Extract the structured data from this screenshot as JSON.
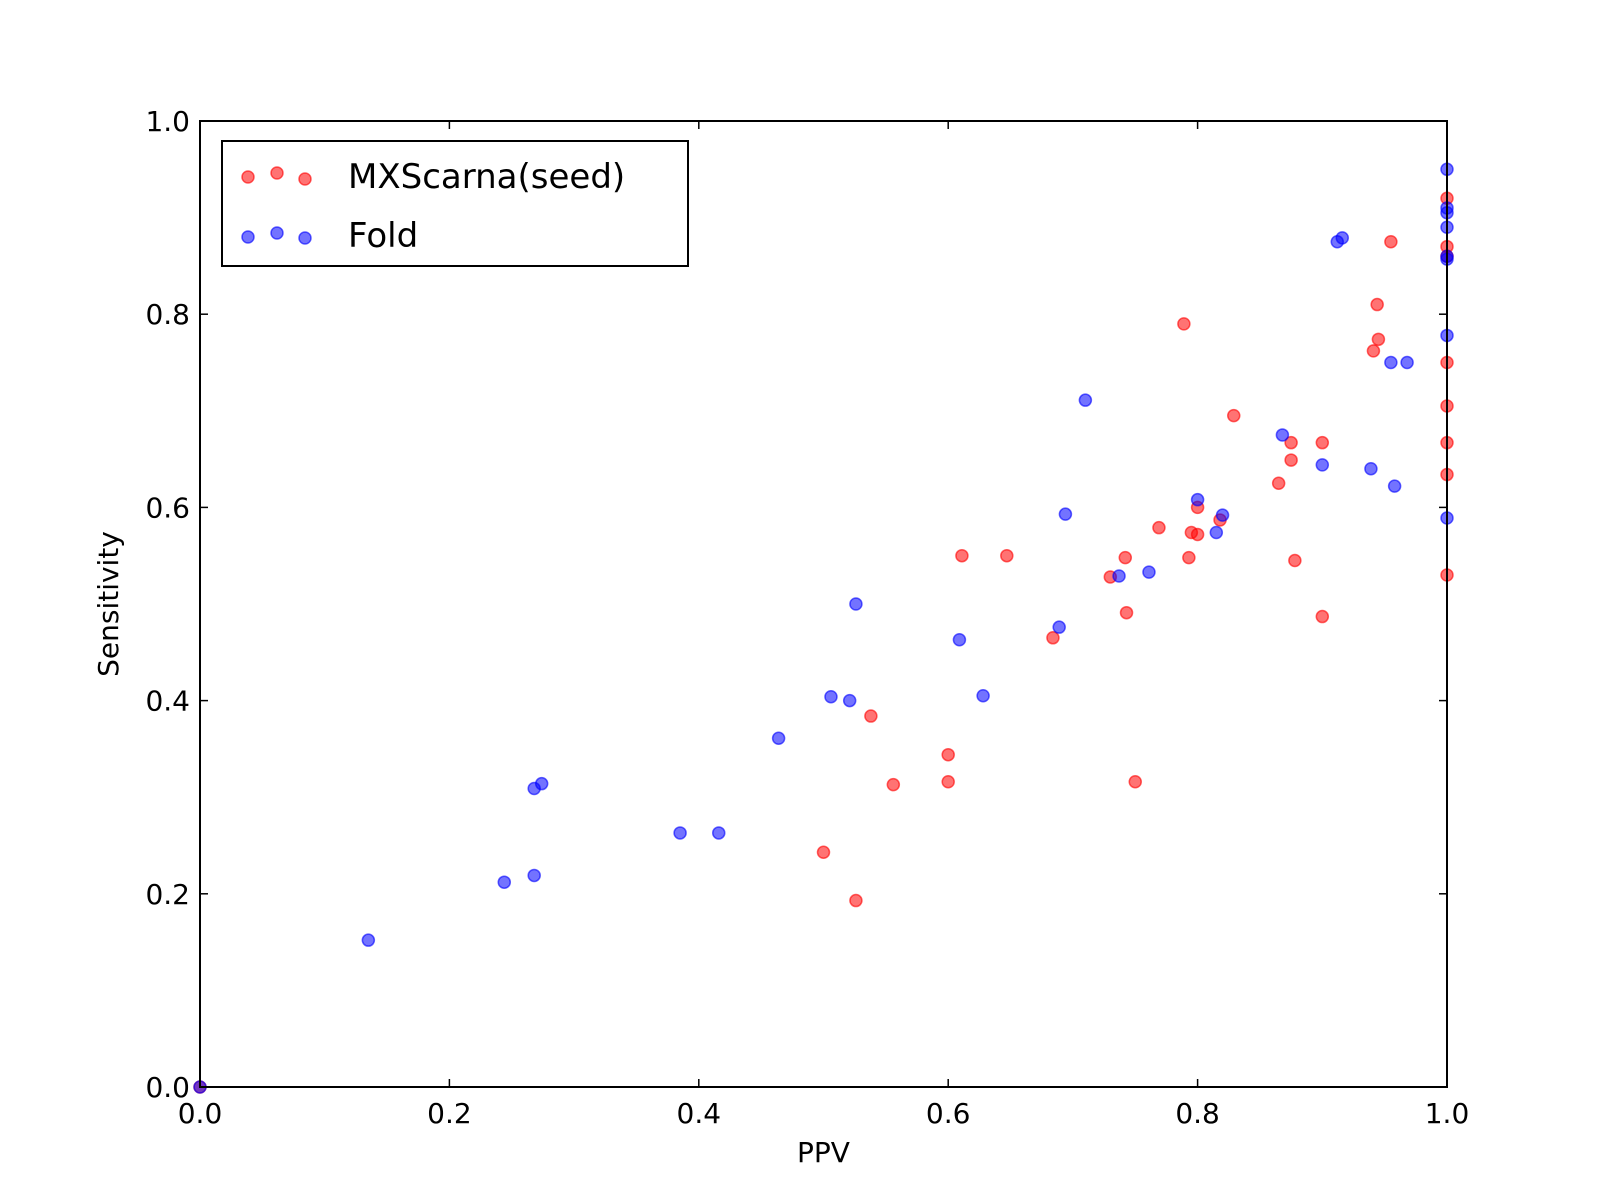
{
  "chart_data": {
    "type": "scatter",
    "xlabel": "PPV",
    "ylabel": "Sensitivity",
    "xlim": [
      0,
      1
    ],
    "ylim": [
      0,
      1
    ],
    "xticks": [
      "0.0",
      "0.2",
      "0.4",
      "0.6",
      "0.8",
      "1.0"
    ],
    "yticks": [
      "0.0",
      "0.2",
      "0.4",
      "0.6",
      "0.8",
      "1.0"
    ],
    "grid": false,
    "legend_position": "top-left",
    "series": [
      {
        "name": "MXScarna(seed)",
        "color": "#ff0000",
        "points": [
          [
            0.0,
            0.0
          ],
          [
            0.5,
            0.243
          ],
          [
            0.526,
            0.193
          ],
          [
            0.538,
            0.384
          ],
          [
            0.556,
            0.313
          ],
          [
            0.6,
            0.344
          ],
          [
            0.6,
            0.316
          ],
          [
            0.611,
            0.55
          ],
          [
            0.647,
            0.55
          ],
          [
            0.684,
            0.465
          ],
          [
            0.73,
            0.528
          ],
          [
            0.742,
            0.548
          ],
          [
            0.743,
            0.491
          ],
          [
            0.75,
            0.316
          ],
          [
            0.769,
            0.579
          ],
          [
            0.789,
            0.79
          ],
          [
            0.793,
            0.548
          ],
          [
            0.795,
            0.574
          ],
          [
            0.8,
            0.6
          ],
          [
            0.8,
            0.572
          ],
          [
            0.818,
            0.587
          ],
          [
            0.829,
            0.695
          ],
          [
            0.865,
            0.625
          ],
          [
            0.875,
            0.667
          ],
          [
            0.875,
            0.649
          ],
          [
            0.878,
            0.545
          ],
          [
            0.9,
            0.667
          ],
          [
            0.9,
            0.487
          ],
          [
            0.941,
            0.762
          ],
          [
            0.944,
            0.81
          ],
          [
            0.945,
            0.774
          ],
          [
            0.955,
            0.875
          ],
          [
            1.0,
            0.92
          ],
          [
            1.0,
            0.87
          ],
          [
            1.0,
            0.86
          ],
          [
            1.0,
            0.75
          ],
          [
            1.0,
            0.705
          ],
          [
            1.0,
            0.667
          ],
          [
            1.0,
            0.634
          ],
          [
            1.0,
            0.53
          ]
        ]
      },
      {
        "name": "Fold",
        "color": "#0000ff",
        "points": [
          [
            0.0,
            0.0
          ],
          [
            0.135,
            0.152
          ],
          [
            0.244,
            0.212
          ],
          [
            0.268,
            0.309
          ],
          [
            0.268,
            0.219
          ],
          [
            0.274,
            0.314
          ],
          [
            0.385,
            0.263
          ],
          [
            0.416,
            0.263
          ],
          [
            0.464,
            0.361
          ],
          [
            0.506,
            0.404
          ],
          [
            0.521,
            0.4
          ],
          [
            0.526,
            0.5
          ],
          [
            0.609,
            0.463
          ],
          [
            0.628,
            0.405
          ],
          [
            0.689,
            0.476
          ],
          [
            0.694,
            0.593
          ],
          [
            0.71,
            0.711
          ],
          [
            0.737,
            0.529
          ],
          [
            0.761,
            0.533
          ],
          [
            0.8,
            0.608
          ],
          [
            0.815,
            0.574
          ],
          [
            0.82,
            0.592
          ],
          [
            0.868,
            0.675
          ],
          [
            0.9,
            0.644
          ],
          [
            0.912,
            0.875
          ],
          [
            0.916,
            0.879
          ],
          [
            0.939,
            0.64
          ],
          [
            0.955,
            0.75
          ],
          [
            0.958,
            0.622
          ],
          [
            0.968,
            0.75
          ],
          [
            1.0,
            0.95
          ],
          [
            1.0,
            0.91
          ],
          [
            1.0,
            0.905
          ],
          [
            1.0,
            0.89
          ],
          [
            1.0,
            0.86
          ],
          [
            1.0,
            0.857
          ],
          [
            1.0,
            0.778
          ],
          [
            1.0,
            0.589
          ]
        ]
      }
    ]
  }
}
